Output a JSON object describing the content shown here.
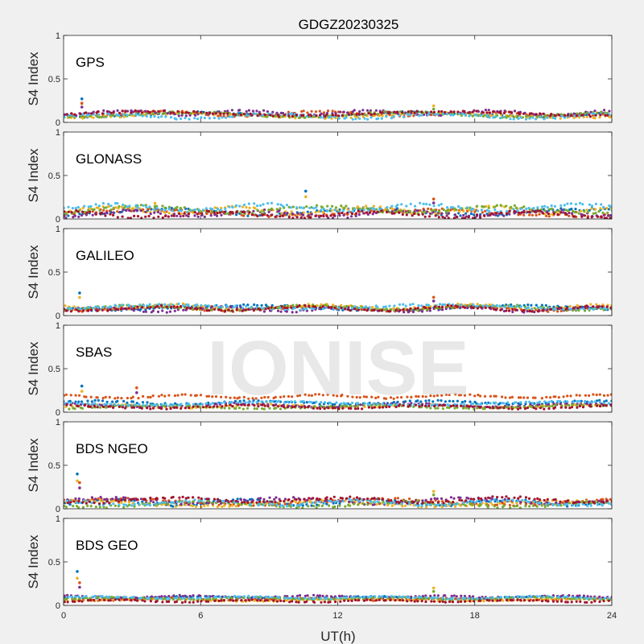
{
  "chart_data": {
    "type": "scatter",
    "title": "GDGZ20230325",
    "xlabel": "UT(h)",
    "xlim": [
      0,
      24
    ],
    "xticks": [
      0,
      6,
      12,
      18,
      24
    ],
    "xtick_labels": [
      "0",
      "6",
      "12",
      "18",
      "24"
    ],
    "ylabel": "S4 Index",
    "ylim": [
      0,
      1
    ],
    "yticks": [
      0,
      0.5,
      1
    ],
    "ytick_labels": [
      "0",
      "0.5",
      "1"
    ],
    "grid": false,
    "watermark": "IONISE",
    "series_colors": [
      "#0072BD",
      "#D95319",
      "#EDB120",
      "#7E2F8E",
      "#77AC30",
      "#4DBEEE",
      "#A2142F"
    ],
    "panels": [
      {
        "label": "GPS",
        "level": [
          0.09,
          0.1,
          0.08,
          0.11,
          0.09,
          0.07,
          0.1
        ],
        "spread": 0.025,
        "spikes": [
          {
            "x": 0.8,
            "y": 0.27
          },
          {
            "x": 0.8,
            "y": 0.22
          },
          {
            "x": 16.2,
            "y": 0.19
          }
        ]
      },
      {
        "label": "GLONASS",
        "level": [
          0.08,
          0.07,
          0.1,
          0.06,
          0.11,
          0.13,
          0.05
        ],
        "spread": 0.035,
        "spikes": [
          {
            "x": 10.6,
            "y": 0.32
          },
          {
            "x": 16.2,
            "y": 0.23
          },
          {
            "x": 4.0,
            "y": 0.18
          }
        ]
      },
      {
        "label": "GALILEO",
        "level": [
          0.09,
          0.08,
          0.1,
          0.07,
          0.09,
          0.1,
          0.08
        ],
        "spread": 0.025,
        "spikes": [
          {
            "x": 0.7,
            "y": 0.26
          },
          {
            "x": 16.2,
            "y": 0.21
          }
        ]
      },
      {
        "label": "SBAS",
        "level": [
          0.11,
          0.18,
          0.07,
          0.08,
          0.06,
          0.1,
          0.06
        ],
        "spread": 0.018,
        "spikes": [
          {
            "x": 0.8,
            "y": 0.3
          },
          {
            "x": 3.2,
            "y": 0.28
          }
        ]
      },
      {
        "label": "BDS NGEO",
        "level": [
          0.07,
          0.08,
          0.06,
          0.09,
          0.05,
          0.07,
          0.1
        ],
        "spread": 0.03,
        "spikes": [
          {
            "x": 0.6,
            "y": 0.4
          },
          {
            "x": 0.7,
            "y": 0.3
          },
          {
            "x": 16.2,
            "y": 0.2
          }
        ]
      },
      {
        "label": "BDS GEO",
        "level": [
          0.09,
          0.07,
          0.06,
          0.1,
          0.08,
          0.09,
          0.05
        ],
        "spread": 0.012,
        "spikes": [
          {
            "x": 0.6,
            "y": 0.39
          },
          {
            "x": 0.7,
            "y": 0.26
          },
          {
            "x": 16.2,
            "y": 0.2
          }
        ]
      }
    ]
  }
}
